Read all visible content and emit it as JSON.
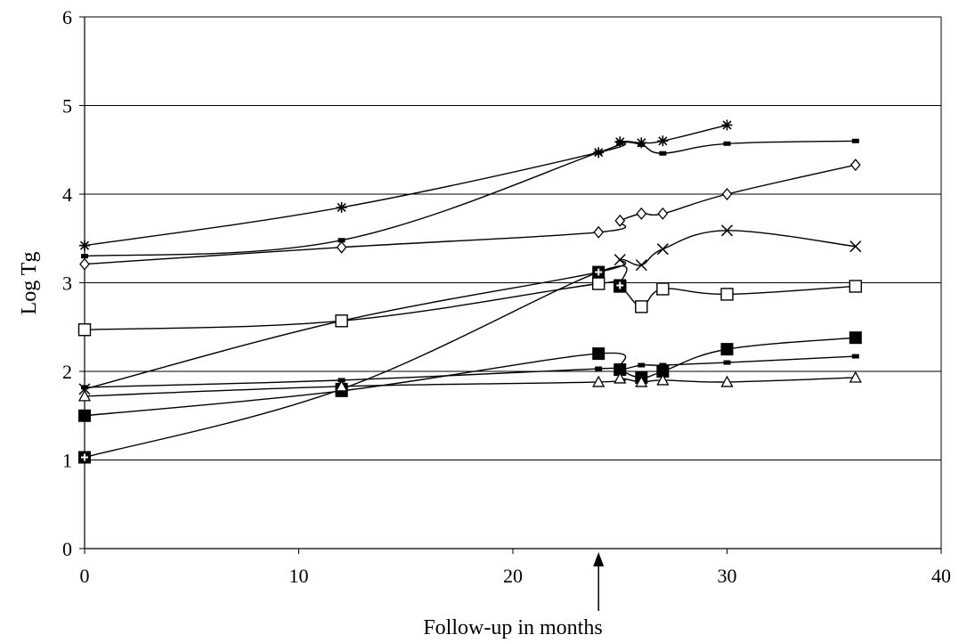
{
  "chart_data": {
    "type": "line",
    "xlabel": "Follow-up in months",
    "ylabel": "Log Tg",
    "xlim": [
      0,
      40
    ],
    "ylim": [
      0,
      6
    ],
    "xticks": [
      0,
      10,
      20,
      30,
      40
    ],
    "yticks": [
      0,
      1,
      2,
      3,
      4,
      5,
      6
    ],
    "grid": "horizontal",
    "annotation": {
      "type": "arrow",
      "x": 24,
      "description": "upward arrow at x-axis marking month 24"
    },
    "series": [
      {
        "marker": "star",
        "x": [
          0,
          12,
          24,
          25,
          26,
          27,
          30
        ],
        "y": [
          3.42,
          3.85,
          4.47,
          4.59,
          4.58,
          4.6,
          4.78
        ]
      },
      {
        "marker": "dash",
        "x": [
          0,
          12,
          24,
          25,
          26,
          27,
          30,
          36
        ],
        "y": [
          3.3,
          3.48,
          4.47,
          4.58,
          4.56,
          4.46,
          4.57,
          4.6
        ]
      },
      {
        "marker": "diamond",
        "x": [
          0,
          12,
          24,
          25,
          26,
          27,
          30,
          36
        ],
        "y": [
          3.21,
          3.4,
          3.57,
          3.7,
          3.78,
          3.78,
          4.0,
          4.33
        ]
      },
      {
        "marker": "x",
        "x": [
          0,
          12,
          24,
          25,
          26,
          27,
          30,
          36
        ],
        "y": [
          1.8,
          2.57,
          3.12,
          3.26,
          3.2,
          3.38,
          3.59,
          3.41
        ]
      },
      {
        "marker": "open-square",
        "x": [
          0,
          12,
          24,
          25,
          26,
          27,
          30,
          36
        ],
        "y": [
          2.47,
          2.57,
          2.99,
          2.96,
          2.73,
          2.93,
          2.87,
          2.96
        ]
      },
      {
        "marker": "hollow-cross",
        "x": [
          0,
          12,
          24,
          25
        ],
        "y": [
          1.03,
          1.8,
          3.12,
          2.97
        ]
      },
      {
        "marker": "filled-square",
        "x": [
          0,
          12,
          24,
          25,
          26,
          27,
          30,
          36
        ],
        "y": [
          1.5,
          1.78,
          2.2,
          2.02,
          1.93,
          2.0,
          2.25,
          2.38
        ]
      },
      {
        "marker": "dash",
        "x": [
          0,
          12,
          24,
          25,
          26,
          27,
          30,
          36
        ],
        "y": [
          1.82,
          1.9,
          2.03,
          2.02,
          2.07,
          2.07,
          2.1,
          2.17
        ]
      },
      {
        "marker": "triangle",
        "x": [
          0,
          12,
          24,
          25,
          26,
          27,
          30,
          36
        ],
        "y": [
          1.72,
          1.83,
          1.88,
          1.92,
          1.88,
          1.9,
          1.88,
          1.93
        ]
      }
    ]
  }
}
